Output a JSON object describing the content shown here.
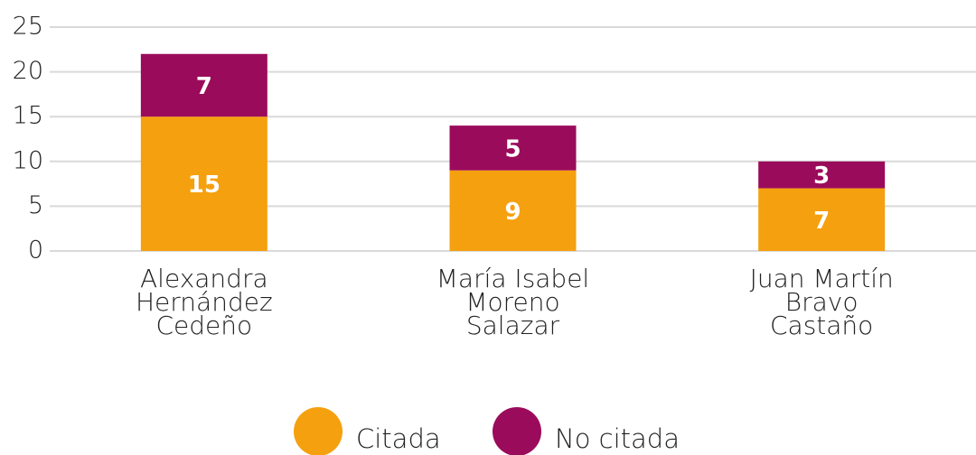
{
  "chart_data": {
    "type": "bar",
    "stacked": true,
    "categories": [
      "Alexandra\nHernández\nCedeño",
      "María Isabel\nMoreno\nSalazar",
      "Juan Martín\nBravo\nCastaño"
    ],
    "series": [
      {
        "name": "Citada",
        "color": "#f5a00f",
        "values": [
          15,
          9,
          7
        ]
      },
      {
        "name": "No citada",
        "color": "#9b0b5b",
        "values": [
          7,
          5,
          3
        ]
      }
    ],
    "ylim": [
      0,
      25
    ],
    "yticks": [
      0,
      5,
      10,
      15,
      20,
      25
    ],
    "grid": true,
    "legend": "bottom"
  }
}
